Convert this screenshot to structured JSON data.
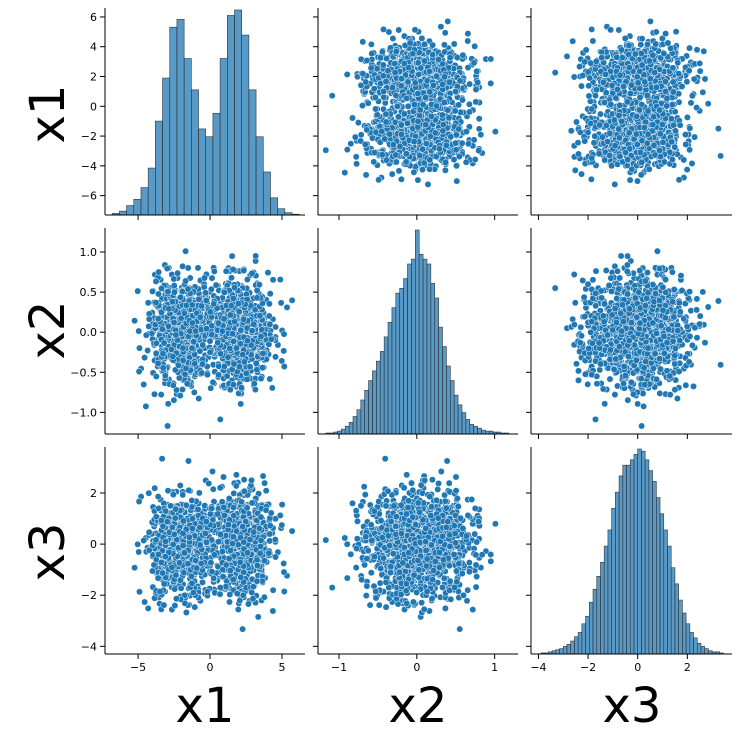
{
  "chart_data": {
    "type": "pairplot",
    "variables": [
      "x1",
      "x2",
      "x3"
    ],
    "accent_color": "#1f77b4",
    "marker_edge_color": "#ffffff",
    "n_points_approx": 3000,
    "axes": {
      "x1": {
        "lim": [
          -7.3,
          6.6
        ],
        "ticks": [
          -5,
          0,
          5
        ],
        "row_ticks": [
          -6,
          -4,
          -2,
          0,
          2,
          4,
          6
        ],
        "data_range": [
          -6.8,
          5.7
        ]
      },
      "x2": {
        "lim": [
          -1.27,
          1.3
        ],
        "ticks": [
          -1,
          0,
          1
        ],
        "row_ticks": [
          -1.0,
          -0.5,
          0.0,
          0.5,
          1.0
        ],
        "data_range": [
          -1.17,
          1.2
        ]
      },
      "x3": {
        "lim": [
          -4.3,
          3.8
        ],
        "ticks": [
          -4,
          -2,
          0,
          2
        ],
        "row_ticks": [
          -4,
          -2,
          0,
          2
        ],
        "data_range": [
          -3.9,
          3.4
        ]
      }
    },
    "histograms": {
      "x1": {
        "bin_start": -6.8,
        "bin_width": 0.5,
        "counts": [
          2,
          5,
          12,
          20,
          35,
          60,
          120,
          175,
          240,
          250,
          200,
          160,
          110,
          100,
          130,
          200,
          255,
          262,
          230,
          160,
          100,
          55,
          22,
          8,
          3,
          1
        ]
      },
      "x2": {
        "bin_start": -1.17,
        "bin_width": 0.05,
        "counts": [
          1,
          1,
          2,
          3,
          5,
          8,
          12,
          18,
          25,
          35,
          45,
          55,
          65,
          75,
          85,
          100,
          115,
          130,
          145,
          150,
          160,
          175,
          180,
          210,
          185,
          180,
          175,
          155,
          140,
          110,
          90,
          70,
          55,
          40,
          30,
          22,
          15,
          10,
          8,
          6,
          4,
          3,
          3,
          2,
          2,
          1,
          1
        ]
      },
      "x3": {
        "bin_start": -3.9,
        "bin_width": 0.15,
        "counts": [
          1,
          1,
          2,
          3,
          4,
          5,
          7,
          9,
          12,
          16,
          20,
          28,
          35,
          48,
          60,
          72,
          85,
          100,
          115,
          135,
          150,
          165,
          175,
          175,
          180,
          185,
          190,
          188,
          180,
          170,
          160,
          145,
          130,
          115,
          100,
          80,
          65,
          50,
          38,
          28,
          20,
          15,
          10,
          7,
          5,
          3,
          2,
          2,
          1
        ]
      }
    }
  }
}
